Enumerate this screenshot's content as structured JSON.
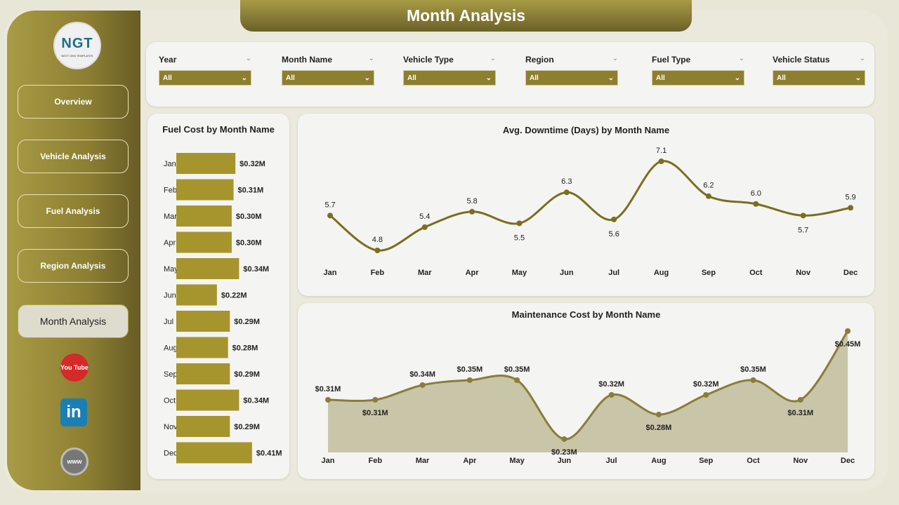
{
  "header": {
    "title": "Month Analysis"
  },
  "logo": {
    "text": "NGT",
    "subtext": "NEXT GEN TEMPLATES"
  },
  "sidebar": {
    "items": [
      {
        "label": "Overview"
      },
      {
        "label": "Vehicle Analysis"
      },
      {
        "label": "Fuel Analysis"
      },
      {
        "label": "Region Analysis"
      },
      {
        "label": "Month Analysis",
        "active": true
      }
    ],
    "social": [
      {
        "icon": "youtube-icon",
        "label": "You Tube",
        "color": "#d42a2a"
      },
      {
        "icon": "linkedin-icon",
        "label": "in",
        "color": "#1a7fb5"
      },
      {
        "icon": "globe-icon",
        "label": "www",
        "color": "#777"
      }
    ]
  },
  "filters": [
    {
      "label": "Year",
      "value": "All"
    },
    {
      "label": "Month Name",
      "value": "All"
    },
    {
      "label": "Vehicle Type",
      "value": "All"
    },
    {
      "label": "Region",
      "value": "All"
    },
    {
      "label": "Fuel Type",
      "value": "All"
    },
    {
      "label": "Vehicle Status",
      "value": "All"
    }
  ],
  "colors": {
    "accent": "#8e7f2e",
    "bar": "#a6952c",
    "line": "#7a6e1f",
    "area": "#c9c5a8"
  },
  "chart_data": [
    {
      "type": "bar",
      "orientation": "horizontal",
      "title": "Fuel Cost by Month Name",
      "categories": [
        "Jan",
        "Feb",
        "Mar",
        "Apr",
        "May",
        "Jun",
        "Jul",
        "Aug",
        "Sep",
        "Oct",
        "Nov",
        "Dec"
      ],
      "values": [
        0.32,
        0.31,
        0.3,
        0.3,
        0.34,
        0.22,
        0.29,
        0.28,
        0.29,
        0.34,
        0.29,
        0.41
      ],
      "labels": [
        "$0.32M",
        "$0.31M",
        "$0.30M",
        "$0.30M",
        "$0.34M",
        "$0.22M",
        "$0.29M",
        "$0.28M",
        "$0.29M",
        "$0.34M",
        "$0.29M",
        "$0.41M"
      ]
    },
    {
      "type": "line",
      "title": "Avg. Downtime (Days) by Month Name",
      "categories": [
        "Jan",
        "Feb",
        "Mar",
        "Apr",
        "May",
        "Jun",
        "Jul",
        "Aug",
        "Sep",
        "Oct",
        "Nov",
        "Dec"
      ],
      "values": [
        5.7,
        4.8,
        5.4,
        5.8,
        5.5,
        6.3,
        5.6,
        7.1,
        6.2,
        6.0,
        5.7,
        5.9
      ],
      "labels": [
        "5.7",
        "4.8",
        "5.4",
        "5.8",
        "5.5",
        "6.3",
        "5.6",
        "7.1",
        "6.2",
        "6.0",
        "5.7",
        "5.9"
      ]
    },
    {
      "type": "area",
      "title": "Maintenance Cost by Month Name",
      "categories": [
        "Jan",
        "Feb",
        "Mar",
        "Apr",
        "May",
        "Jun",
        "Jul",
        "Aug",
        "Sep",
        "Oct",
        "Nov",
        "Dec"
      ],
      "values": [
        0.31,
        0.31,
        0.34,
        0.35,
        0.35,
        0.23,
        0.32,
        0.28,
        0.32,
        0.35,
        0.31,
        0.45
      ],
      "labels": [
        "$0.31M",
        "$0.31M",
        "$0.34M",
        "$0.35M",
        "$0.35M",
        "$0.23M",
        "$0.32M",
        "$0.28M",
        "$0.32M",
        "$0.35M",
        "$0.31M",
        "$0.45M"
      ]
    }
  ]
}
